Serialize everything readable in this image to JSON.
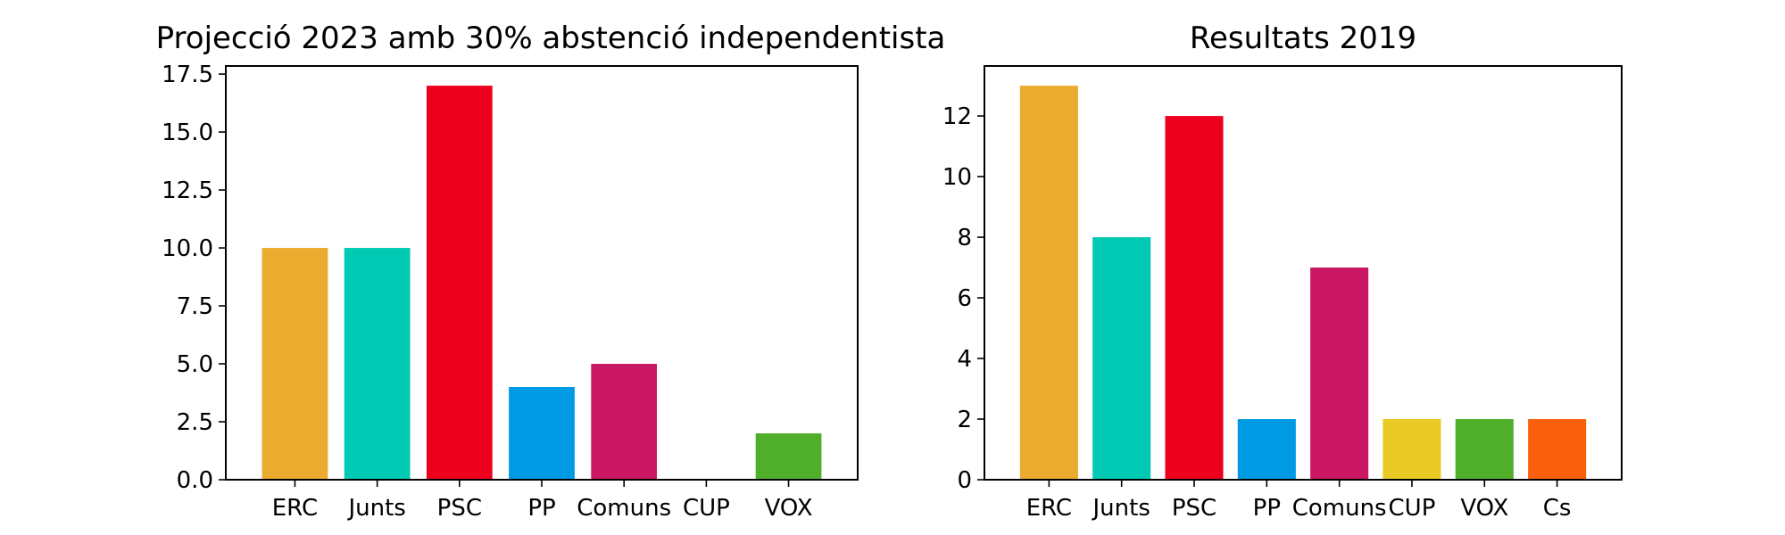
{
  "chart_data": [
    {
      "type": "bar",
      "title": "Projecció 2023 amb 30% abstenció independentista",
      "xlabel": "",
      "ylabel": "",
      "categories": [
        "ERC",
        "Junts",
        "PSC",
        "PP",
        "Comuns",
        "CUP",
        "VOX"
      ],
      "values": [
        10,
        10,
        17,
        4,
        5,
        0,
        2
      ],
      "colors": [
        "#EBAB2E",
        "#00C9B4",
        "#ED001D",
        "#0099E3",
        "#C91764",
        "#E9C924",
        "#4FAF2A"
      ],
      "ylim": [
        0,
        17.85
      ],
      "yticks": [
        "0.0",
        "2.5",
        "5.0",
        "7.5",
        "10.0",
        "12.5",
        "15.0",
        "17.5"
      ],
      "grid": false,
      "legend": "none"
    },
    {
      "type": "bar",
      "title": "Resultats 2019",
      "xlabel": "",
      "ylabel": "",
      "categories": [
        "ERC",
        "Junts",
        "PSC",
        "PP",
        "Comuns",
        "CUP",
        "VOX",
        "Cs"
      ],
      "values": [
        13,
        8,
        12,
        2,
        7,
        2,
        2,
        2
      ],
      "colors": [
        "#EBAB2E",
        "#00C9B4",
        "#ED001D",
        "#0099E3",
        "#C91764",
        "#E9C924",
        "#4FAF2A",
        "#F8600D"
      ],
      "ylim": [
        0,
        13.65
      ],
      "yticks": [
        "0",
        "2",
        "4",
        "6",
        "8",
        "10",
        "12"
      ],
      "grid": false,
      "legend": "none"
    }
  ]
}
